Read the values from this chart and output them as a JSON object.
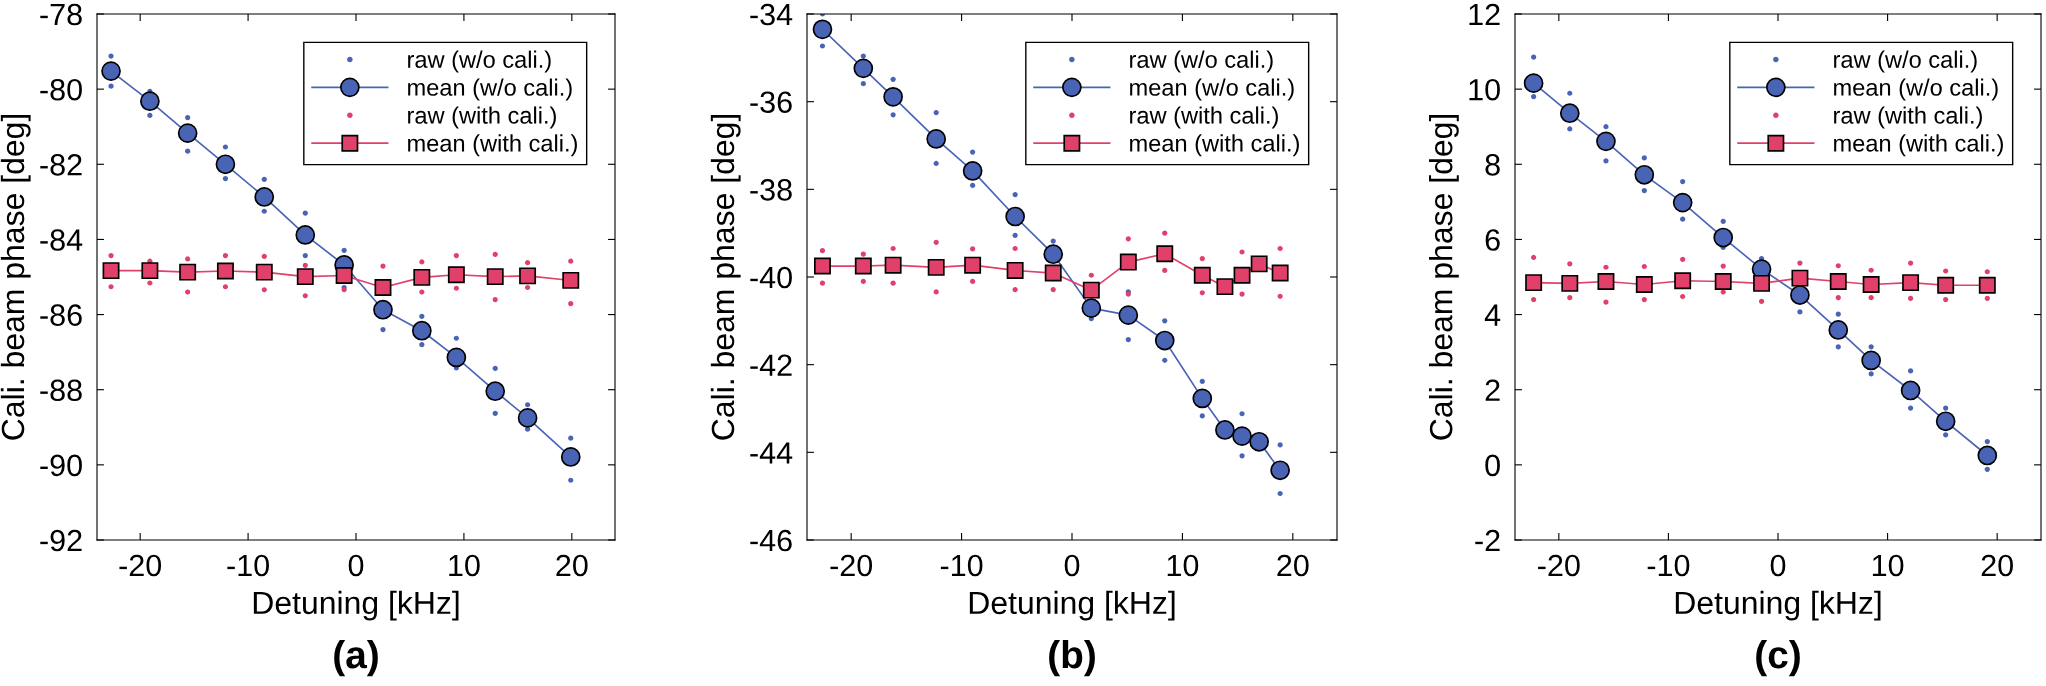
{
  "chart_data": [
    {
      "type": "line",
      "xlabel": "Detuning [kHz]",
      "ylabel": "Cali. beam phase [deg]",
      "annotations": [
        "(a)"
      ],
      "xlim": [
        -24,
        24
      ],
      "xticks": [
        -20,
        -10,
        0,
        10,
        20
      ],
      "ylim": [
        -92,
        -78
      ],
      "yticks": [
        -92,
        -90,
        -88,
        -86,
        -84,
        -82,
        -80,
        -78
      ],
      "legend": "top right",
      "grid": false,
      "series": [
        {
          "name": "raw (w/o cali.)",
          "type": "scatter",
          "marker": "circle",
          "color": "#4a64b5",
          "x": [
            -22.7,
            -22.7,
            -19.1,
            -19.1,
            -15.6,
            -15.6,
            -12.1,
            -12.1,
            -8.5,
            -8.5,
            -4.7,
            -4.7,
            -1.1,
            -1.1,
            2.5,
            6.1,
            6.1,
            9.3,
            9.3,
            12.9,
            12.9,
            15.9,
            15.9,
            19.9,
            19.9
          ],
          "values": [
            -79.12,
            -79.92,
            -80.06,
            -80.7,
            -80.76,
            -81.65,
            -81.54,
            -82.38,
            -82.4,
            -83.25,
            -83.3,
            -84.43,
            -84.29,
            -85.28,
            -86.4,
            -86.05,
            -86.8,
            -86.63,
            -87.42,
            -87.43,
            -88.63,
            -88.4,
            -89.05,
            -89.29,
            -90.41
          ]
        },
        {
          "name": "mean (w/o cali.)",
          "type": "line",
          "marker": "circle",
          "line_style": "solid",
          "color": "#4a64b5",
          "x": [
            -22.7,
            -19.1,
            -15.6,
            -12.1,
            -8.5,
            -4.7,
            -1.1,
            2.5,
            6.1,
            9.3,
            12.9,
            15.9,
            19.9
          ],
          "values": [
            -79.52,
            -80.32,
            -81.17,
            -82.0,
            -82.87,
            -83.88,
            -84.68,
            -85.87,
            -86.43,
            -87.14,
            -88.04,
            -88.75,
            -89.79
          ]
        },
        {
          "name": "raw (with cali.)",
          "type": "scatter",
          "marker": "circle",
          "color": "#e0406a",
          "x": [
            -22.7,
            -22.7,
            -19.1,
            -19.1,
            -15.6,
            -15.6,
            -12.1,
            -12.1,
            -8.5,
            -8.5,
            -4.7,
            -4.7,
            -1.1,
            2.5,
            6.1,
            6.1,
            9.3,
            9.3,
            12.9,
            12.9,
            15.9,
            15.9,
            19.9,
            19.9
          ],
          "values": [
            -84.43,
            -85.26,
            -84.58,
            -85.16,
            -84.52,
            -85.4,
            -84.43,
            -85.26,
            -84.45,
            -85.34,
            -84.69,
            -85.5,
            -85.34,
            -84.71,
            -84.6,
            -85.4,
            -84.43,
            -85.3,
            -84.4,
            -85.6,
            -84.62,
            -85.28,
            -84.58,
            -85.71
          ]
        },
        {
          "name": "mean (with cali.)",
          "type": "line",
          "marker": "square",
          "line_style": "solid",
          "color": "#e0406a",
          "x": [
            -22.7,
            -19.1,
            -15.6,
            -12.1,
            -8.5,
            -4.7,
            -1.1,
            2.5,
            6.1,
            9.3,
            12.9,
            15.9,
            19.9
          ],
          "values": [
            -84.83,
            -84.83,
            -84.87,
            -84.84,
            -84.87,
            -84.99,
            -84.96,
            -85.28,
            -85.01,
            -84.94,
            -84.99,
            -84.97,
            -85.09
          ]
        }
      ]
    },
    {
      "type": "line",
      "xlabel": "Detuning [kHz]",
      "ylabel": "Cali. beam phase [deg]",
      "annotations": [
        "(b)"
      ],
      "xlim": [
        -24,
        24
      ],
      "xticks": [
        -20,
        -10,
        0,
        10,
        20
      ],
      "ylim": [
        -46,
        -34
      ],
      "yticks": [
        -46,
        -44,
        -42,
        -40,
        -38,
        -36,
        -34
      ],
      "legend": "top right",
      "grid": false,
      "series": [
        {
          "name": "raw (w/o cali.)",
          "type": "scatter",
          "marker": "circle",
          "color": "#4a64b5",
          "x": [
            -22.6,
            -22.6,
            -18.9,
            -18.9,
            -16.2,
            -16.2,
            -12.3,
            -12.3,
            -9.0,
            -9.0,
            -5.15,
            -5.15,
            -1.7,
            1.75,
            5.1,
            5.1,
            8.4,
            8.4,
            11.8,
            11.8,
            15.4,
            15.4,
            18.85,
            18.85
          ],
          "values": [
            -34.0,
            -34.73,
            -34.96,
            -35.59,
            -35.49,
            -36.3,
            -36.25,
            -37.41,
            -37.15,
            -37.91,
            -38.12,
            -39.05,
            -39.18,
            -40.95,
            -40.34,
            -41.43,
            -41.0,
            -41.9,
            -42.38,
            -43.17,
            -43.12,
            -44.08,
            -43.83,
            -44.94
          ]
        },
        {
          "name": "mean (w/o cali.)",
          "type": "line",
          "marker": "circle",
          "line_style": "solid",
          "color": "#4a64b5",
          "x": [
            -22.6,
            -18.9,
            -16.2,
            -12.3,
            -9.0,
            -5.15,
            -1.7,
            1.75,
            5.1,
            8.4,
            11.8,
            13.85,
            15.4,
            16.95,
            18.85
          ],
          "values": [
            -34.35,
            -35.24,
            -35.89,
            -36.85,
            -37.58,
            -38.62,
            -39.48,
            -40.71,
            -40.87,
            -41.45,
            -42.77,
            -43.49,
            -43.63,
            -43.76,
            -44.41
          ]
        },
        {
          "name": "raw (with cali.)",
          "type": "scatter",
          "marker": "circle",
          "color": "#e0406a",
          "x": [
            -22.6,
            -22.6,
            -18.9,
            -18.9,
            -16.2,
            -16.2,
            -12.3,
            -12.3,
            -9.0,
            -9.0,
            -5.15,
            -5.15,
            -1.7,
            1.75,
            5.1,
            5.1,
            8.4,
            8.4,
            11.8,
            11.8,
            15.4,
            15.4,
            18.85,
            18.85
          ],
          "values": [
            -39.4,
            -40.14,
            -39.48,
            -40.1,
            -39.35,
            -40.14,
            -39.21,
            -40.34,
            -39.36,
            -40.1,
            -39.35,
            -40.29,
            -40.29,
            -39.96,
            -39.13,
            -40.39,
            -39.0,
            -39.85,
            -39.58,
            -40.36,
            -39.43,
            -40.39,
            -39.35,
            -40.44
          ]
        },
        {
          "name": "mean (with cali.)",
          "type": "line",
          "marker": "square",
          "line_style": "solid",
          "color": "#e0406a",
          "x": [
            -22.6,
            -18.9,
            -16.2,
            -12.3,
            -9.0,
            -5.15,
            -1.7,
            1.75,
            5.1,
            8.4,
            11.8,
            13.85,
            15.4,
            16.95,
            18.85
          ],
          "values": [
            -39.75,
            -39.75,
            -39.73,
            -39.78,
            -39.73,
            -39.85,
            -39.91,
            -40.3,
            -39.66,
            -39.47,
            -39.96,
            -40.22,
            -39.96,
            -39.7,
            -39.91
          ]
        }
      ]
    },
    {
      "type": "line",
      "xlabel": "Detuning [kHz]",
      "ylabel": "Cali. beam phase [deg]",
      "annotations": [
        "(c)"
      ],
      "xlim": [
        -24,
        24
      ],
      "xticks": [
        -20,
        -10,
        0,
        10,
        20
      ],
      "ylim": [
        -2,
        12
      ],
      "yticks": [
        -2,
        0,
        2,
        4,
        6,
        8,
        10,
        12
      ],
      "legend": "top right",
      "grid": false,
      "series": [
        {
          "name": "raw (w/o cali.)",
          "type": "scatter",
          "marker": "circle",
          "color": "#4a64b5",
          "x": [
            -22.3,
            -22.3,
            -19.0,
            -19.0,
            -15.7,
            -15.7,
            -12.2,
            -12.2,
            -8.7,
            -8.7,
            -5.0,
            -5.0,
            -1.5,
            2.0,
            5.5,
            5.5,
            8.5,
            8.5,
            12.1,
            12.1,
            15.3,
            15.3,
            19.1,
            19.1
          ],
          "values": [
            10.85,
            9.8,
            9.89,
            8.94,
            9.0,
            8.09,
            8.17,
            7.3,
            7.54,
            6.54,
            6.48,
            5.79,
            5.49,
            4.07,
            4.01,
            3.14,
            3.14,
            2.42,
            2.5,
            1.51,
            1.51,
            0.8,
            0.62,
            -0.12
          ]
        },
        {
          "name": "mean (w/o cali.)",
          "type": "line",
          "marker": "circle",
          "line_style": "solid",
          "color": "#4a64b5",
          "x": [
            -22.3,
            -19.0,
            -15.7,
            -12.2,
            -8.7,
            -5.0,
            -1.5,
            2.0,
            5.5,
            8.5,
            12.1,
            15.3,
            19.1
          ],
          "values": [
            10.16,
            9.36,
            8.61,
            7.72,
            6.98,
            6.05,
            5.21,
            4.52,
            3.59,
            2.78,
            1.98,
            1.16,
            0.25
          ]
        },
        {
          "name": "raw (with cali.)",
          "type": "scatter",
          "marker": "circle",
          "color": "#e0406a",
          "x": [
            -22.3,
            -22.3,
            -19.0,
            -19.0,
            -15.7,
            -15.7,
            -12.2,
            -12.2,
            -8.7,
            -8.7,
            -5.0,
            -5.0,
            -1.5,
            2.0,
            5.5,
            5.5,
            8.5,
            8.5,
            12.1,
            12.1,
            15.3,
            15.3,
            19.1,
            19.1
          ],
          "values": [
            5.52,
            4.4,
            5.35,
            4.45,
            5.26,
            4.33,
            5.28,
            4.4,
            5.47,
            4.48,
            5.29,
            4.6,
            4.35,
            5.37,
            5.3,
            4.45,
            5.18,
            4.45,
            5.37,
            4.43,
            5.16,
            4.4,
            5.14,
            4.43
          ]
        },
        {
          "name": "mean (with cali.)",
          "type": "line",
          "marker": "square",
          "line_style": "solid",
          "color": "#e0406a",
          "x": [
            -22.3,
            -19.0,
            -15.7,
            -12.2,
            -8.7,
            -5.0,
            -1.5,
            2.0,
            5.5,
            8.5,
            12.1,
            15.3,
            19.1
          ],
          "values": [
            4.85,
            4.83,
            4.88,
            4.8,
            4.9,
            4.88,
            4.83,
            4.97,
            4.88,
            4.8,
            4.85,
            4.78,
            4.78
          ]
        }
      ]
    }
  ]
}
